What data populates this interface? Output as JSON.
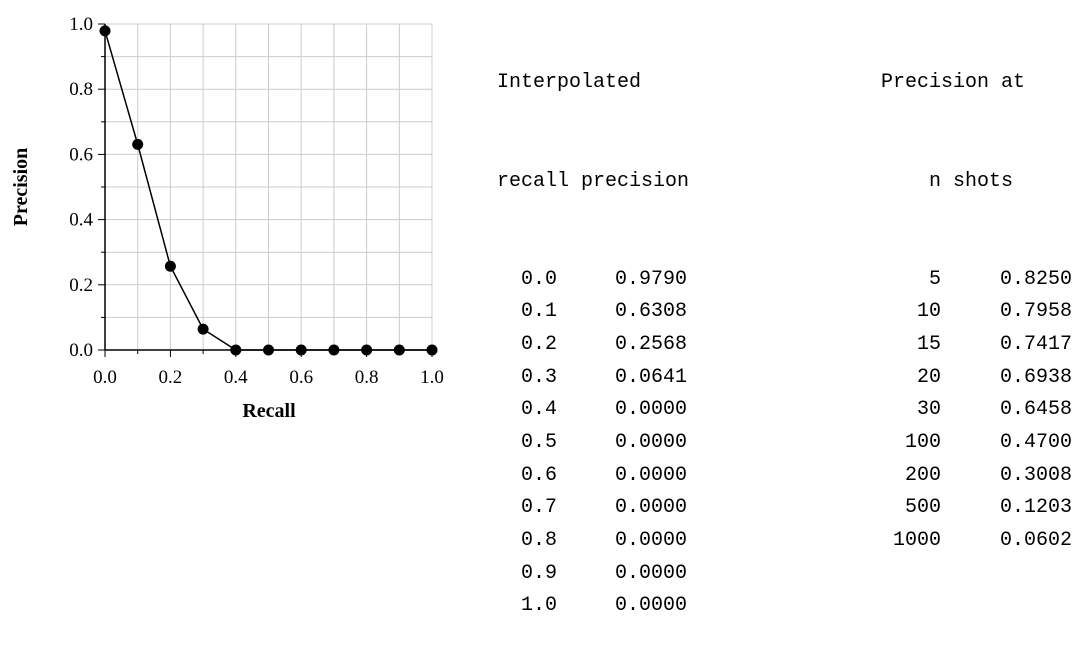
{
  "chart_data": {
    "type": "line",
    "xlabel": "Recall",
    "ylabel": "Precision",
    "xlim": [
      0,
      1
    ],
    "ylim": [
      0,
      1
    ],
    "grid": true,
    "xticks": [
      "0.0",
      "0.2",
      "0.4",
      "0.6",
      "0.8",
      "1.0"
    ],
    "yticks": [
      "0.0",
      "0.2",
      "0.4",
      "0.6",
      "0.8",
      "1.0"
    ],
    "series": [
      {
        "x": [
          0.0,
          0.1,
          0.2,
          0.3,
          0.4,
          0.5,
          0.6,
          0.7,
          0.8,
          0.9,
          1.0
        ],
        "y": [
          0.979,
          0.6308,
          0.2568,
          0.0641,
          0.0,
          0.0,
          0.0,
          0.0,
          0.0,
          0.0,
          0.0
        ]
      }
    ]
  },
  "interpolated_table": {
    "header_line1": "Interpolated",
    "header_line2": "recall precision",
    "rows": [
      {
        "recall": "0.0",
        "precision": "0.9790"
      },
      {
        "recall": "0.1",
        "precision": "0.6308"
      },
      {
        "recall": "0.2",
        "precision": "0.2568"
      },
      {
        "recall": "0.3",
        "precision": "0.0641"
      },
      {
        "recall": "0.4",
        "precision": "0.0000"
      },
      {
        "recall": "0.5",
        "precision": "0.0000"
      },
      {
        "recall": "0.6",
        "precision": "0.0000"
      },
      {
        "recall": "0.7",
        "precision": "0.0000"
      },
      {
        "recall": "0.8",
        "precision": "0.0000"
      },
      {
        "recall": "0.9",
        "precision": "0.0000"
      },
      {
        "recall": "1.0",
        "precision": "0.0000"
      }
    ]
  },
  "shots_table": {
    "header_line1": "Precision at",
    "header_line2": "n shots",
    "rows": [
      {
        "n": "5",
        "precision": "0.8250"
      },
      {
        "n": "10",
        "precision": "0.7958"
      },
      {
        "n": "15",
        "precision": "0.7417"
      },
      {
        "n": "20",
        "precision": "0.6938"
      },
      {
        "n": "30",
        "precision": "0.6458"
      },
      {
        "n": "100",
        "precision": "0.4700"
      },
      {
        "n": "200",
        "precision": "0.3008"
      },
      {
        "n": "500",
        "precision": "0.1203"
      },
      {
        "n": "1000",
        "precision": "0.0602"
      }
    ]
  }
}
